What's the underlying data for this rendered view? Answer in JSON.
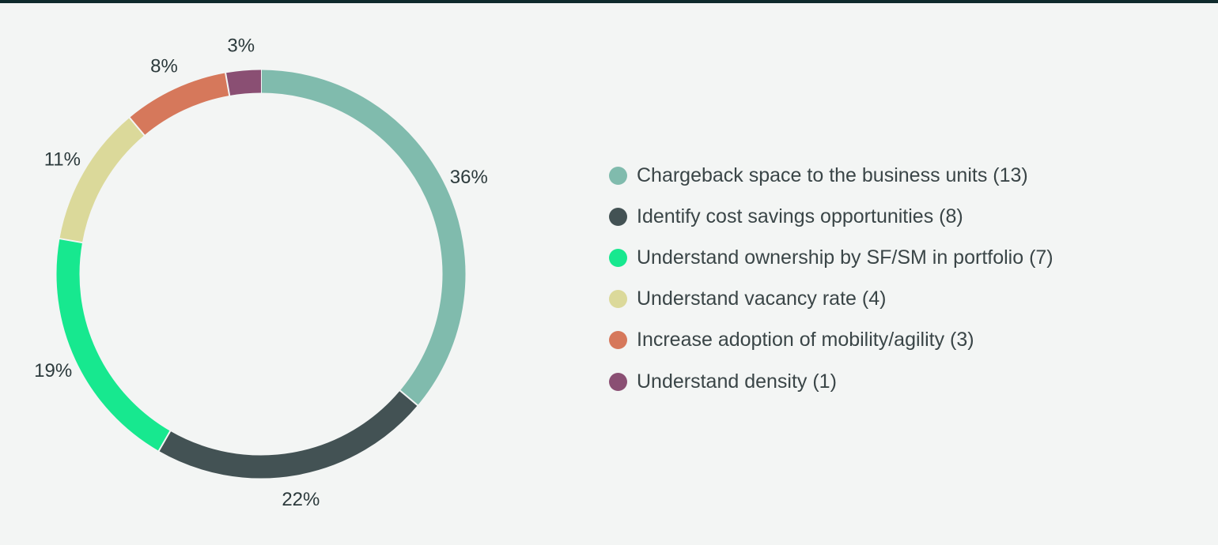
{
  "chart_data": {
    "type": "pie",
    "donut": true,
    "title": "",
    "categories": [
      "Chargeback space to the business units (13)",
      "Identify cost savings opportunities (8)",
      "Understand ownership by SF/SM in portfolio (7)",
      "Understand vacancy rate (4)",
      "Increase adoption of mobility/agility (3)",
      "Understand density (1)"
    ],
    "values": [
      13,
      8,
      7,
      4,
      3,
      1
    ],
    "percent_labels": [
      "36%",
      "22%",
      "19%",
      "11%",
      "8%",
      "3%"
    ],
    "colors": [
      "#80bbad",
      "#435254",
      "#17e88f",
      "#dbd99a",
      "#d6785b",
      "#8a4f73"
    ],
    "legend_position": "right"
  }
}
